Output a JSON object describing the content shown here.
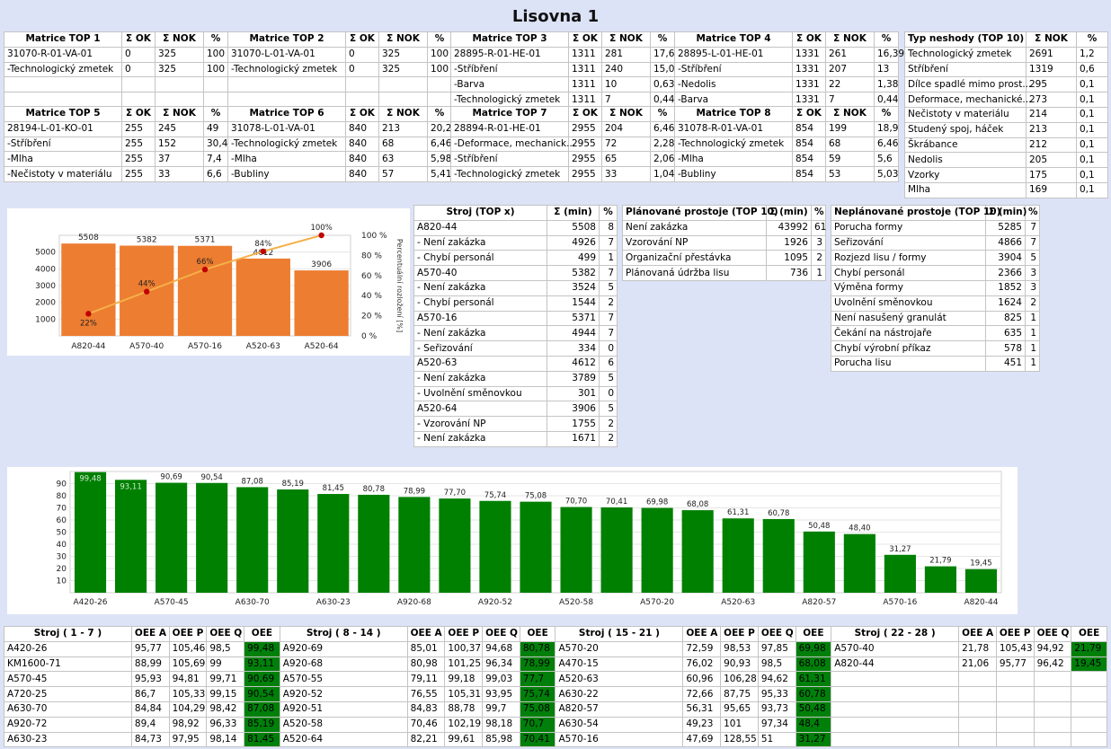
{
  "title": "Lisovna 1",
  "matrix_header": {
    "ok": "Σ OK",
    "nok": "Σ NOK",
    "pct": "%"
  },
  "matrices": [
    {
      "name": "Matrice TOP 1",
      "rows": [
        [
          "31070-R-01-VA-01",
          "0",
          "325",
          "100"
        ],
        [
          "-Technologický zmetek",
          "0",
          "325",
          "100"
        ]
      ]
    },
    {
      "name": "Matrice TOP 2",
      "rows": [
        [
          "31070-L-01-VA-01",
          "0",
          "325",
          "100"
        ],
        [
          "-Technologický zmetek",
          "0",
          "325",
          "100"
        ]
      ]
    },
    {
      "name": "Matrice TOP 3",
      "rows": [
        [
          "28895-R-01-HE-01",
          "1311",
          "281",
          "17,65"
        ],
        [
          "-Stříbření",
          "1311",
          "240",
          "15,08"
        ],
        [
          "-Barva",
          "1311",
          "10",
          "0,63"
        ],
        [
          "-Technologický zmetek",
          "1311",
          "7",
          "0,44"
        ]
      ]
    },
    {
      "name": "Matrice TOP 4",
      "rows": [
        [
          "28895-L-01-HE-01",
          "1331",
          "261",
          "16,39"
        ],
        [
          "-Stříbření",
          "1331",
          "207",
          "13"
        ],
        [
          "-Nedolis",
          "1331",
          "22",
          "1,38"
        ],
        [
          "-Barva",
          "1331",
          "7",
          "0,44"
        ]
      ]
    },
    {
      "name": "Matrice TOP 5",
      "rows": [
        [
          "28194-L-01-KO-01",
          "255",
          "245",
          "49"
        ],
        [
          "-Stříbření",
          "255",
          "152",
          "30,4"
        ],
        [
          "-Mlha",
          "255",
          "37",
          "7,4"
        ],
        [
          "-Nečistoty v materiálu",
          "255",
          "33",
          "6,6"
        ]
      ]
    },
    {
      "name": "Matrice TOP 6",
      "rows": [
        [
          "31078-L-01-VA-01",
          "840",
          "213",
          "20,23"
        ],
        [
          "-Technologický zmetek",
          "840",
          "68",
          "6,46"
        ],
        [
          "-Mlha",
          "840",
          "63",
          "5,98"
        ],
        [
          "-Bubliny",
          "840",
          "57",
          "5,41"
        ]
      ]
    },
    {
      "name": "Matrice TOP 7",
      "rows": [
        [
          "28894-R-01-HE-01",
          "2955",
          "204",
          "6,46"
        ],
        [
          "-Deformace, mechanick...",
          "2955",
          "72",
          "2,28"
        ],
        [
          "-Stříbření",
          "2955",
          "65",
          "2,06"
        ],
        [
          "-Technologický zmetek",
          "2955",
          "33",
          "1,04"
        ]
      ]
    },
    {
      "name": "Matrice TOP 8",
      "rows": [
        [
          "31078-R-01-VA-01",
          "854",
          "199",
          "18,9"
        ],
        [
          "-Technologický zmetek",
          "854",
          "68",
          "6,46"
        ],
        [
          "-Mlha",
          "854",
          "59",
          "5,6"
        ],
        [
          "-Bubliny",
          "854",
          "53",
          "5,03"
        ]
      ]
    }
  ],
  "defects": {
    "headers": [
      "Typ neshody (TOP 10)",
      "Σ NOK",
      "%"
    ],
    "rows": [
      [
        "Technologický zmetek",
        "2691",
        "1,2"
      ],
      [
        "Stříbření",
        "1319",
        "0,6"
      ],
      [
        "Dílce spadlé mimo prost...",
        "295",
        "0,1"
      ],
      [
        "Deformace, mechanické...",
        "273",
        "0,1"
      ],
      [
        "Nečistoty v materiálu",
        "214",
        "0,1"
      ],
      [
        "Studený spoj, háček",
        "213",
        "0,1"
      ],
      [
        "Škrábance",
        "212",
        "0,1"
      ],
      [
        "Nedolis",
        "205",
        "0,1"
      ],
      [
        "Vzorky",
        "175",
        "0,1"
      ],
      [
        "Mlha",
        "169",
        "0,1"
      ]
    ]
  },
  "machines": {
    "headers": [
      "Stroj (TOP x)",
      "Σ (min)",
      "%"
    ],
    "rows": [
      [
        "A820-44",
        "5508",
        "8"
      ],
      [
        "- Není zakázka",
        "4926",
        "7"
      ],
      [
        "- Chybí personál",
        "499",
        "1"
      ],
      [
        "A570-40",
        "5382",
        "7"
      ],
      [
        "- Není zakázka",
        "3524",
        "5"
      ],
      [
        "- Chybí personál",
        "1544",
        "2"
      ],
      [
        "A570-16",
        "5371",
        "7"
      ],
      [
        "- Není zakázka",
        "4944",
        "7"
      ],
      [
        "- Seřizování",
        "334",
        "0"
      ],
      [
        "A520-63",
        "4612",
        "6"
      ],
      [
        "- Není zakázka",
        "3789",
        "5"
      ],
      [
        "- Uvolnění směnovkou",
        "301",
        "0"
      ],
      [
        "A520-64",
        "3906",
        "5"
      ],
      [
        "- Vzorování NP",
        "1755",
        "2"
      ],
      [
        "- Není zakázka",
        "1671",
        "2"
      ]
    ]
  },
  "planned": {
    "headers": [
      "Plánované prostoje (TOP 10)",
      "Σ (min)",
      "%"
    ],
    "rows": [
      [
        "Není zakázka",
        "43992",
        "61"
      ],
      [
        "Vzorování NP",
        "1926",
        "3"
      ],
      [
        "Organizační přestávka",
        "1095",
        "2"
      ],
      [
        "Plánovaná údržba lisu",
        "736",
        "1"
      ]
    ]
  },
  "unplanned": {
    "headers": [
      "Neplánované prostoje (TOP 10)",
      "Σ (min)",
      "%"
    ],
    "rows": [
      [
        "Porucha formy",
        "5285",
        "7"
      ],
      [
        "Seřizování",
        "4866",
        "7"
      ],
      [
        "Rozjezd lisu / formy",
        "3904",
        "5"
      ],
      [
        "Chybí personál",
        "2366",
        "3"
      ],
      [
        "Výměna formy",
        "1852",
        "3"
      ],
      [
        "Uvolnění směnovkou",
        "1624",
        "2"
      ],
      [
        "Není nasušený granulát",
        "825",
        "1"
      ],
      [
        "Čekání na nástrojaře",
        "635",
        "1"
      ],
      [
        "Chybí výrobní příkaz",
        "578",
        "1"
      ],
      [
        "Porucha lisu",
        "451",
        "1"
      ]
    ]
  },
  "oee_header": {
    "a": "OEE A",
    "p": "OEE P",
    "q": "OEE Q",
    "oee": "OEE"
  },
  "oee_groups": [
    {
      "title": "Stroj ( 1 - 7 )",
      "rows": [
        [
          "A420-26",
          "95,77",
          "105,46",
          "98,5",
          "99,48"
        ],
        [
          "KM1600-71",
          "88,99",
          "105,69",
          "99",
          "93,11"
        ],
        [
          "A570-45",
          "95,93",
          "94,81",
          "99,71",
          "90,69"
        ],
        [
          "A720-25",
          "86,7",
          "105,33",
          "99,15",
          "90,54"
        ],
        [
          "A630-70",
          "84,84",
          "104,29",
          "98,42",
          "87,08"
        ],
        [
          "A920-72",
          "89,4",
          "98,92",
          "96,33",
          "85,19"
        ],
        [
          "A630-23",
          "84,73",
          "97,95",
          "98,14",
          "81,45"
        ]
      ]
    },
    {
      "title": "Stroj ( 8 - 14 )",
      "rows": [
        [
          "A920-69",
          "85,01",
          "100,37",
          "94,68",
          "80,78"
        ],
        [
          "A920-68",
          "80,98",
          "101,25",
          "96,34",
          "78,99"
        ],
        [
          "A570-55",
          "79,11",
          "99,18",
          "99,03",
          "77,7"
        ],
        [
          "A920-52",
          "76,55",
          "105,31",
          "93,95",
          "75,74"
        ],
        [
          "A920-51",
          "84,83",
          "88,78",
          "99,7",
          "75,08"
        ],
        [
          "A520-58",
          "70,46",
          "102,19",
          "98,18",
          "70,7"
        ],
        [
          "A520-64",
          "82,21",
          "99,61",
          "85,98",
          "70,41"
        ]
      ]
    },
    {
      "title": "Stroj ( 15 - 21 )",
      "rows": [
        [
          "A570-20",
          "72,59",
          "98,53",
          "97,85",
          "69,98"
        ],
        [
          "A470-15",
          "76,02",
          "90,93",
          "98,5",
          "68,08"
        ],
        [
          "A520-63",
          "60,96",
          "106,28",
          "94,62",
          "61,31"
        ],
        [
          "A630-22",
          "72,66",
          "87,75",
          "95,33",
          "60,78"
        ],
        [
          "A820-57",
          "56,31",
          "95,65",
          "93,73",
          "50,48"
        ],
        [
          "A630-54",
          "49,23",
          "101",
          "97,34",
          "48,4"
        ],
        [
          "A570-16",
          "47,69",
          "128,55",
          "51",
          "31,27"
        ]
      ]
    },
    {
      "title": "Stroj ( 22 - 28 )",
      "rows": [
        [
          "A570-40",
          "21,78",
          "105,43",
          "94,92",
          "21,79"
        ],
        [
          "A820-44",
          "21,06",
          "95,77",
          "96,42",
          "19,45"
        ],
        [
          "",
          "",
          "",
          "",
          ""
        ],
        [
          "",
          "",
          "",
          "",
          ""
        ],
        [
          "",
          "",
          "",
          "",
          ""
        ],
        [
          "",
          "",
          "",
          "",
          ""
        ],
        [
          "",
          "",
          "",
          "",
          ""
        ]
      ]
    }
  ],
  "chart_data": [
    {
      "type": "bar",
      "categories": [
        "A820-44",
        "A570-40",
        "A570-16",
        "A520-63",
        "A520-64"
      ],
      "values": [
        5508,
        5382,
        5371,
        4612,
        3906
      ],
      "value_labels": [
        "5508",
        "5382",
        "5371",
        "4612",
        "3906"
      ],
      "cumulative_pct": [
        22,
        44,
        66,
        84,
        100
      ],
      "cumulative_labels": [
        "22%",
        "44%",
        "66%",
        "84%",
        "100%"
      ],
      "ylim": [
        0,
        6000
      ],
      "yticks": [
        1000,
        2000,
        3000,
        4000,
        5000
      ],
      "y2lim": [
        0,
        100
      ],
      "y2ticks": [
        "0 %",
        "20 %",
        "40 %",
        "60 %",
        "80 %",
        "100 %"
      ],
      "y2label": "Percentuální rozložení [%]",
      "bar_color": "#ed7d31",
      "line_color": "#f4b04a",
      "point_color": "#c00000"
    },
    {
      "type": "bar",
      "categories": [
        "A420-26",
        "KM1600-71",
        "A570-45",
        "A720-25",
        "A630-70",
        "A920-72",
        "A630-23",
        "A920-69",
        "A920-68",
        "A570-55",
        "A920-52",
        "A920-51",
        "A520-58",
        "A520-64",
        "A570-20",
        "A470-15",
        "A520-63",
        "A630-22",
        "A820-57",
        "A630-54",
        "A570-16",
        "A570-40",
        "A820-44"
      ],
      "values": [
        99.48,
        93.11,
        90.69,
        90.54,
        87.08,
        85.19,
        81.45,
        80.78,
        78.99,
        77.7,
        75.74,
        75.08,
        70.7,
        70.41,
        69.98,
        68.08,
        61.31,
        60.78,
        50.48,
        48.4,
        31.27,
        21.79,
        19.45
      ],
      "value_labels": [
        "99,48",
        "93,11",
        "90,69",
        "90,54",
        "87,08",
        "85,19",
        "81,45",
        "80,78",
        "78,99",
        "77,70",
        "75,74",
        "75,08",
        "70,70",
        "70,41",
        "69,98",
        "68,08",
        "61,31",
        "60,78",
        "50,48",
        "48,40",
        "31,27",
        "21,79",
        "19,45"
      ],
      "x_tick_labels": [
        "A420-26",
        "A570-45",
        "A630-70",
        "A630-23",
        "A920-68",
        "A920-52",
        "A520-58",
        "A570-20",
        "A520-63",
        "A820-57",
        "A570-16",
        "A820-44"
      ],
      "ylim": [
        0,
        100
      ],
      "yticks": [
        10,
        20,
        30,
        40,
        50,
        60,
        70,
        80,
        90
      ],
      "bar_color": "#008000"
    }
  ]
}
